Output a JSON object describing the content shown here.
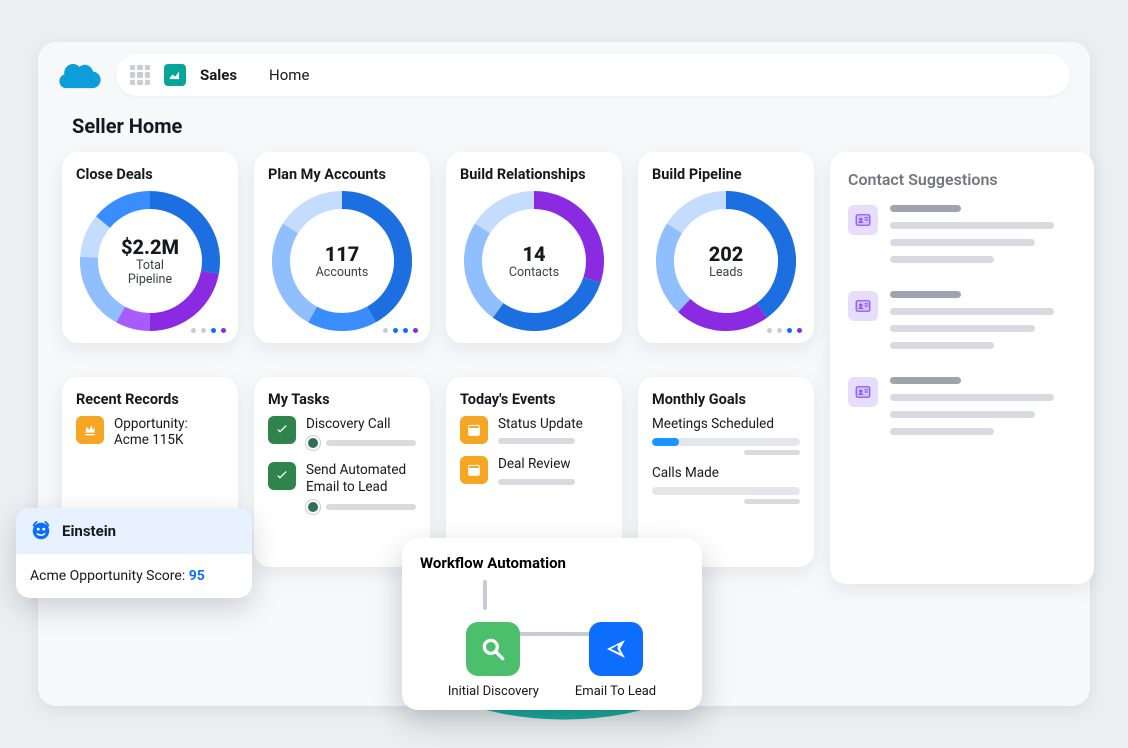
{
  "colors": {
    "page_bg": "#eceff1",
    "app_bg": "#f6f8fa",
    "circle": "#1aaf9c",
    "card_bg": "#ffffff",
    "text": "#16181d",
    "muted": "#72777f",
    "placeholder": "#d7dbe0",
    "cloud": "#0d9ddb",
    "sales_icon_bg": "#06a59a",
    "purple_badge_bg": "#e8ddff",
    "purple_badge_fg": "#8a5cff",
    "einstein_hdr_bg": "#e8f1ff",
    "score": "#0d6efd",
    "check": "#2e844a",
    "orange": "#f5a623",
    "blue_bar": "#1b96ff"
  },
  "header": {
    "app_name": "Sales",
    "nav_item": "Home"
  },
  "page_title": "Seller Home",
  "donut_palette": {
    "dark_blue": "#1b6fe0",
    "mid_blue": "#3a8dff",
    "light_blue": "#8fbfff",
    "lighter_blue": "#c4ddff",
    "purple": "#8a2be2",
    "violet": "#a65cff",
    "track": "#e9eef5"
  },
  "kpi": [
    {
      "title": "Close Deals",
      "value": "$2.2M",
      "sub": "Total\nPipeline",
      "segments": [
        {
          "color": "#1b6fe0",
          "pct": 28
        },
        {
          "color": "#8a2be2",
          "pct": 22
        },
        {
          "color": "#a65cff",
          "pct": 8
        },
        {
          "color": "#8fbfff",
          "pct": 18
        },
        {
          "color": "#c4ddff",
          "pct": 10
        },
        {
          "color": "#3a8dff",
          "pct": 14
        }
      ],
      "dots": [
        "#c4cdd8",
        "#c4cdd8",
        "#0d6efd",
        "#8a2be2"
      ]
    },
    {
      "title": "Plan My Accounts",
      "value": "117",
      "sub": "Accounts",
      "segments": [
        {
          "color": "#1b6fe0",
          "pct": 42
        },
        {
          "color": "#3a8dff",
          "pct": 16
        },
        {
          "color": "#8fbfff",
          "pct": 26
        },
        {
          "color": "#c4ddff",
          "pct": 16
        }
      ],
      "dots": [
        "#c4cdd8",
        "#0d6efd",
        "#0d6efd",
        "#8a2be2"
      ]
    },
    {
      "title": "Build Relationships",
      "value": "14",
      "sub": "Contacts",
      "segments": [
        {
          "color": "#8a2be2",
          "pct": 30
        },
        {
          "color": "#1b6fe0",
          "pct": 30
        },
        {
          "color": "#8fbfff",
          "pct": 24
        },
        {
          "color": "#c4ddff",
          "pct": 16
        }
      ],
      "dots": null
    },
    {
      "title": "Build Pipeline",
      "value": "202",
      "sub": "Leads",
      "segments": [
        {
          "color": "#1b6fe0",
          "pct": 40
        },
        {
          "color": "#8a2be2",
          "pct": 22
        },
        {
          "color": "#8fbfff",
          "pct": 22
        },
        {
          "color": "#c4ddff",
          "pct": 16
        }
      ],
      "dots": [
        "#c4cdd8",
        "#c4cdd8",
        "#0d6efd",
        "#8a2be2"
      ]
    }
  ],
  "recent": {
    "title": "Recent Records",
    "items": [
      {
        "label": "Opportunity: Acme 115K",
        "icon": "crown",
        "icon_color": "#f5a623"
      }
    ]
  },
  "tasks": {
    "title": "My Tasks",
    "items": [
      {
        "label": "Discovery Call"
      },
      {
        "label": "Send Automated Email to Lead"
      }
    ]
  },
  "events": {
    "title": "Today's Events",
    "items": [
      {
        "label": "Status Update"
      },
      {
        "label": "Deal Review"
      }
    ]
  },
  "goals": {
    "title": "Monthly Goals",
    "items": [
      {
        "label": "Meetings Scheduled",
        "pct": 18
      },
      {
        "label": "Calls Made",
        "pct": 0
      }
    ]
  },
  "contacts": {
    "title": "Contact Suggestions",
    "count": 3,
    "line_widths": [
      [
        38,
        88,
        78,
        56
      ],
      [
        38,
        88,
        78,
        56
      ],
      [
        38,
        88,
        78,
        56
      ]
    ]
  },
  "einstein": {
    "title": "Einstein",
    "body_prefix": "Acme Opportunity Score: ",
    "score": "95"
  },
  "workflow": {
    "title": "Workflow Automation",
    "nodes": [
      {
        "label": "Initial Discovery",
        "icon": "search",
        "bg": "#4bbf6b"
      },
      {
        "label": "Email To Lead",
        "icon": "send",
        "bg": "#0d6efd"
      }
    ]
  }
}
